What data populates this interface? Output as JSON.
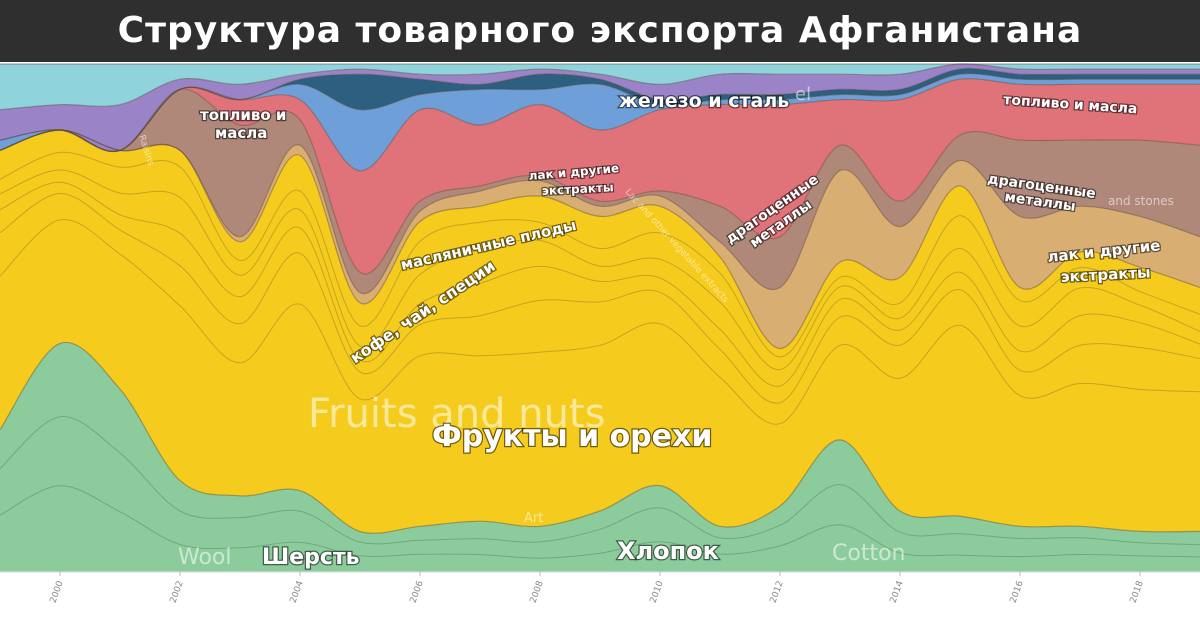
{
  "title": "Структура товарного экспорта Афганистана",
  "chart_data": {
    "type": "area",
    "stacked": true,
    "normalized": true,
    "x_ticks": [
      "2000",
      "2002",
      "2004",
      "2006",
      "2008",
      "2010",
      "2012",
      "2014",
      "2016",
      "2018"
    ],
    "xlim": [
      1999.0,
      2019.0
    ],
    "ylim": [
      0,
      100
    ],
    "x": [
      1999,
      2000,
      2001,
      2002,
      2003,
      2004,
      2005,
      2006,
      2007,
      2008,
      2009,
      2010,
      2011,
      2012,
      2013,
      2014,
      2015,
      2016,
      2017,
      2018,
      2019
    ],
    "series": [
      {
        "key": "cotton",
        "color": "#8ccc9c",
        "values": [
          28,
          45,
          36,
          18,
          15,
          16,
          8,
          9,
          10,
          9,
          12,
          17,
          9,
          13,
          26,
          12,
          11,
          9,
          9,
          8,
          8
        ]
      },
      {
        "key": "fruits",
        "color": "#f5cc1e",
        "values": [
          55,
          42,
          47,
          65,
          50,
          66,
          45,
          60,
          62,
          65,
          58,
          55,
          53,
          31,
          35,
          46,
          65,
          47,
          54,
          52,
          48
        ]
      },
      {
        "key": "precious",
        "color": "#d9ae72",
        "values": [
          0,
          0,
          0,
          0,
          1,
          2,
          2,
          2,
          3,
          3,
          2,
          2,
          3,
          12,
          18,
          10,
          5,
          14,
          9,
          10,
          10
        ]
      },
      {
        "key": "fuel",
        "color": "#b0887a",
        "values": [
          0,
          0,
          0,
          12,
          22,
          5,
          4,
          2,
          1,
          1,
          1,
          1,
          7,
          10,
          5,
          5,
          5,
          15,
          13,
          15,
          18
        ]
      },
      {
        "key": "iron",
        "color": "#e0727a",
        "values": [
          0,
          0,
          0,
          0,
          5,
          4,
          20,
          18,
          12,
          14,
          14,
          16,
          20,
          26,
          9,
          20,
          11,
          11,
          11,
          11,
          12
        ]
      },
      {
        "key": "blue",
        "color": "#6e9fd8",
        "values": [
          2,
          0,
          0,
          0,
          0,
          3,
          12,
          3,
          7,
          3,
          9,
          1,
          1,
          1,
          1,
          1,
          1,
          1,
          1,
          1,
          1
        ]
      },
      {
        "key": "navy",
        "color": "#2c5f80",
        "values": [
          0,
          0,
          0,
          0,
          0,
          1,
          7,
          3,
          1,
          3,
          1,
          1,
          1,
          1,
          1,
          1,
          1,
          1,
          1,
          1,
          1
        ]
      },
      {
        "key": "purple",
        "color": "#9b83c8",
        "values": [
          6,
          5,
          9,
          2,
          3,
          1,
          1,
          1,
          2,
          1,
          1,
          3,
          4,
          4,
          3,
          3,
          1,
          1,
          1,
          1,
          1
        ]
      },
      {
        "key": "teal",
        "color": "#8fd4dc",
        "values": [
          9,
          8,
          8,
          3,
          4,
          2,
          1,
          2,
          2,
          1,
          2,
          4,
          2,
          2,
          2,
          2,
          0,
          1,
          1,
          1,
          1
        ]
      }
    ],
    "labels": {
      "cotton_ru": "Хлопок",
      "cotton_en": "Cotton",
      "wool_ru": "Шерсть",
      "wool_en": "Wool",
      "art_en": "Art",
      "fruits_ru": "Фрукты и орехи",
      "fruits_en": "Fruits and nuts",
      "coffee_ru": "кофе, чай, специи",
      "oilseeds_ru": "масляничные плоды",
      "lac_ru_1": "лак и другие",
      "lac_ru_2": "экстракты",
      "lac2_ru_1": "лак и другие",
      "lac2_ru_2": "экстракты",
      "lac_en": "Lac and other vegetable extracts",
      "precious_ru_1": "драгоценные",
      "precious_ru_2": "металлы",
      "precious2_ru_1": "драгоценные",
      "precious2_ru_2": "металлы",
      "stones_en": "and stones",
      "fuel_ru_1": "топливо и",
      "fuel_ru_2": "масла",
      "fuel2_ru": "топливо и масла",
      "iron_ru": "железо и сталь",
      "iron_en": "el",
      "raisins_en": "Raisins"
    }
  }
}
